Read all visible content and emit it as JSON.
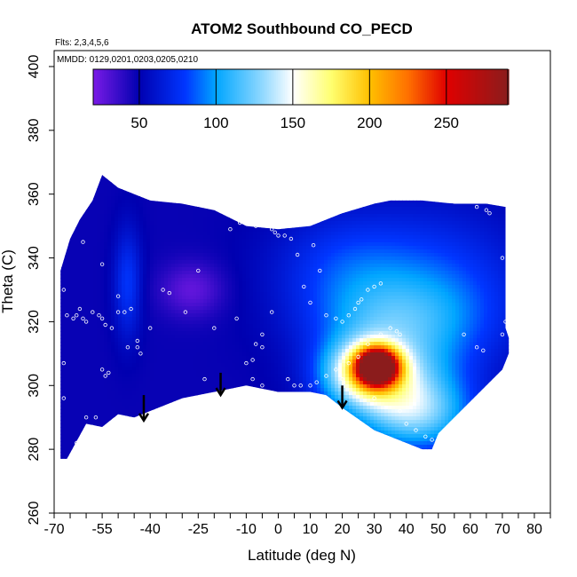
{
  "chart_data": {
    "type": "heatmap",
    "title": "ATOM2 Southbound CO_PECD",
    "notes": [
      "Flts: 2,3,4,5,6",
      "MMDD: 0129,0201,0203,0205,0210"
    ],
    "xlabel": "Latitude (deg N)",
    "ylabel": "Theta (C)",
    "xlim": [
      -70,
      85
    ],
    "ylim": [
      260,
      405
    ],
    "x_ticks": [
      -70,
      -65,
      -60,
      -55,
      -50,
      -45,
      -40,
      -35,
      -30,
      -25,
      -20,
      -15,
      -10,
      -5,
      0,
      5,
      10,
      15,
      20,
      25,
      30,
      35,
      40,
      45,
      50,
      55,
      60,
      65,
      70,
      75,
      80,
      85
    ],
    "x_tick_labels": [
      {
        "value": -70,
        "label": "-70"
      },
      {
        "value": -55,
        "label": "-55"
      },
      {
        "value": -40,
        "label": "-40"
      },
      {
        "value": -25,
        "label": "-25"
      },
      {
        "value": -10,
        "label": "-10"
      },
      {
        "value": 0,
        "label": "0"
      },
      {
        "value": 10,
        "label": "10"
      },
      {
        "value": 20,
        "label": "20"
      },
      {
        "value": 30,
        "label": "30"
      },
      {
        "value": 40,
        "label": "40"
      },
      {
        "value": 50,
        "label": "50"
      },
      {
        "value": 60,
        "label": "60"
      },
      {
        "value": 70,
        "label": "70"
      },
      {
        "value": 80,
        "label": "80"
      }
    ],
    "y_ticks": [
      260,
      280,
      300,
      320,
      340,
      360,
      380,
      400
    ],
    "y_tick_labels": [
      "260",
      "280",
      "300",
      "320",
      "340",
      "360",
      "380",
      "400"
    ],
    "colorbar": {
      "range": [
        20,
        290
      ],
      "ticks": [
        50,
        100,
        150,
        200,
        250
      ],
      "tick_labels": [
        "50",
        "100",
        "150",
        "200",
        "250"
      ],
      "stops": [
        {
          "value": 20,
          "color": "#7a1be6"
        },
        {
          "value": 50,
          "color": "#0000b0"
        },
        {
          "value": 80,
          "color": "#0036ff"
        },
        {
          "value": 100,
          "color": "#00a6ff"
        },
        {
          "value": 130,
          "color": "#8fd8ff"
        },
        {
          "value": 150,
          "color": "#ffffff"
        },
        {
          "value": 175,
          "color": "#ffff70"
        },
        {
          "value": 200,
          "color": "#ffc000"
        },
        {
          "value": 225,
          "color": "#ff7000"
        },
        {
          "value": 250,
          "color": "#e00000"
        },
        {
          "value": 290,
          "color": "#8b1c1c"
        }
      ]
    },
    "field": {
      "background_value": 48,
      "boundary": [
        [
          -68,
          277
        ],
        [
          -66,
          277
        ],
        [
          -60,
          288
        ],
        [
          -55,
          287
        ],
        [
          -50,
          291
        ],
        [
          -45,
          290
        ],
        [
          -40,
          292
        ],
        [
          -30,
          296
        ],
        [
          -20,
          298
        ],
        [
          -10,
          300
        ],
        [
          -5,
          299
        ],
        [
          0,
          298
        ],
        [
          5,
          298
        ],
        [
          10,
          298
        ],
        [
          15,
          297
        ],
        [
          20,
          293
        ],
        [
          30,
          286
        ],
        [
          40,
          282
        ],
        [
          45,
          280
        ],
        [
          48,
          280
        ],
        [
          50,
          285
        ],
        [
          60,
          295
        ],
        [
          70,
          305
        ],
        [
          72,
          310
        ],
        [
          72,
          315
        ],
        [
          71,
          318
        ],
        [
          71,
          356
        ],
        [
          65,
          357
        ],
        [
          55,
          357
        ],
        [
          45,
          358
        ],
        [
          35,
          358
        ],
        [
          30,
          357
        ],
        [
          20,
          354
        ],
        [
          10,
          350
        ],
        [
          0,
          349
        ],
        [
          -10,
          350
        ],
        [
          -20,
          355
        ],
        [
          -30,
          357
        ],
        [
          -40,
          358
        ],
        [
          -50,
          362
        ],
        [
          -55,
          366
        ],
        [
          -58,
          358
        ],
        [
          -62,
          352
        ],
        [
          -65,
          346
        ],
        [
          -68,
          336
        ]
      ],
      "blobs": [
        {
          "x": 31,
          "y": 306,
          "sx": 4.5,
          "sy": 4,
          "amp": 210
        },
        {
          "x": 27,
          "y": 304,
          "sx": 9,
          "sy": 7,
          "amp": 85
        },
        {
          "x": 36,
          "y": 300,
          "sx": 14,
          "sy": 10,
          "amp": 55
        },
        {
          "x": 44,
          "y": 290,
          "sx": 12,
          "sy": 8,
          "amp": 55
        },
        {
          "x": 35,
          "y": 320,
          "sx": 18,
          "sy": 10,
          "amp": 40
        },
        {
          "x": 50,
          "y": 330,
          "sx": 20,
          "sy": 18,
          "amp": 32
        },
        {
          "x": 20,
          "y": 338,
          "sx": 16,
          "sy": 12,
          "amp": 25
        },
        {
          "x": -47,
          "y": 332,
          "sx": 3,
          "sy": 12,
          "amp": 30
        },
        {
          "x": -27,
          "y": 330,
          "sx": 7,
          "sy": 6,
          "amp": -22
        }
      ],
      "flight_points": [
        [
          -67,
          330
        ],
        [
          -66,
          322
        ],
        [
          -64,
          321
        ],
        [
          -63,
          322
        ],
        [
          -62,
          324
        ],
        [
          -61,
          321
        ],
        [
          -60,
          320
        ],
        [
          -58,
          323
        ],
        [
          -56,
          322
        ],
        [
          -55,
          321
        ],
        [
          -54,
          319
        ],
        [
          -52,
          318
        ],
        [
          -50,
          323
        ],
        [
          -48,
          323
        ],
        [
          -53,
          304
        ],
        [
          -54,
          303
        ],
        [
          -55,
          305
        ],
        [
          -60,
          290
        ],
        [
          -58,
          287
        ],
        [
          -55,
          286
        ],
        [
          -57,
          290
        ],
        [
          -63,
          282
        ],
        [
          -67,
          307
        ],
        [
          -67,
          296
        ],
        [
          -61,
          345
        ],
        [
          -55,
          338
        ],
        [
          -50,
          328
        ],
        [
          -46,
          324
        ],
        [
          -44,
          314
        ],
        [
          -44,
          312
        ],
        [
          -43,
          310
        ],
        [
          -47,
          312
        ],
        [
          -40,
          318
        ],
        [
          -36,
          330
        ],
        [
          -34,
          329
        ],
        [
          -29,
          323
        ],
        [
          -25,
          336
        ],
        [
          -20,
          318
        ],
        [
          -23,
          302
        ],
        [
          -13,
          321
        ],
        [
          -15,
          349
        ],
        [
          -12,
          351
        ],
        [
          -10,
          352
        ],
        [
          -9,
          351
        ],
        [
          -7,
          350
        ],
        [
          -3,
          350
        ],
        [
          -2,
          349
        ],
        [
          -1,
          348
        ],
        [
          0,
          347
        ],
        [
          2,
          347
        ],
        [
          4,
          346
        ],
        [
          -2,
          323
        ],
        [
          -5,
          316
        ],
        [
          -7,
          313
        ],
        [
          -5,
          312
        ],
        [
          -8,
          308
        ],
        [
          -10,
          307
        ],
        [
          -8,
          302
        ],
        [
          -5,
          300
        ],
        [
          3,
          302
        ],
        [
          5,
          300
        ],
        [
          7,
          300
        ],
        [
          10,
          300
        ],
        [
          12,
          301
        ],
        [
          15,
          303
        ],
        [
          18,
          305
        ],
        [
          22,
          307
        ],
        [
          25,
          309
        ],
        [
          28,
          313
        ],
        [
          32,
          316
        ],
        [
          35,
          318
        ],
        [
          37,
          317
        ],
        [
          38,
          316
        ],
        [
          15,
          322
        ],
        [
          18,
          321
        ],
        [
          20,
          320
        ],
        [
          22,
          322
        ],
        [
          24,
          324
        ],
        [
          25,
          326
        ],
        [
          26,
          327
        ],
        [
          28,
          330
        ],
        [
          30,
          331
        ],
        [
          32,
          332
        ],
        [
          10,
          326
        ],
        [
          8,
          331
        ],
        [
          6,
          341
        ],
        [
          11,
          344
        ],
        [
          13,
          336
        ],
        [
          20,
          302
        ],
        [
          30,
          296
        ],
        [
          38,
          292
        ],
        [
          40,
          288
        ],
        [
          43,
          286
        ],
        [
          46,
          284
        ],
        [
          48,
          283
        ],
        [
          62,
          356
        ],
        [
          65,
          355
        ],
        [
          66,
          354
        ],
        [
          58,
          316
        ],
        [
          62,
          312
        ],
        [
          64,
          311
        ],
        [
          70,
          316
        ],
        [
          71,
          320
        ],
        [
          70,
          340
        ]
      ]
    },
    "annotations": [
      {
        "type": "arrow",
        "x": -42,
        "y_from": 297,
        "y_to": 289
      },
      {
        "type": "arrow",
        "x": -18,
        "y_from": 304,
        "y_to": 297
      },
      {
        "type": "arrow",
        "x": 20,
        "y_from": 300,
        "y_to": 293
      }
    ]
  }
}
